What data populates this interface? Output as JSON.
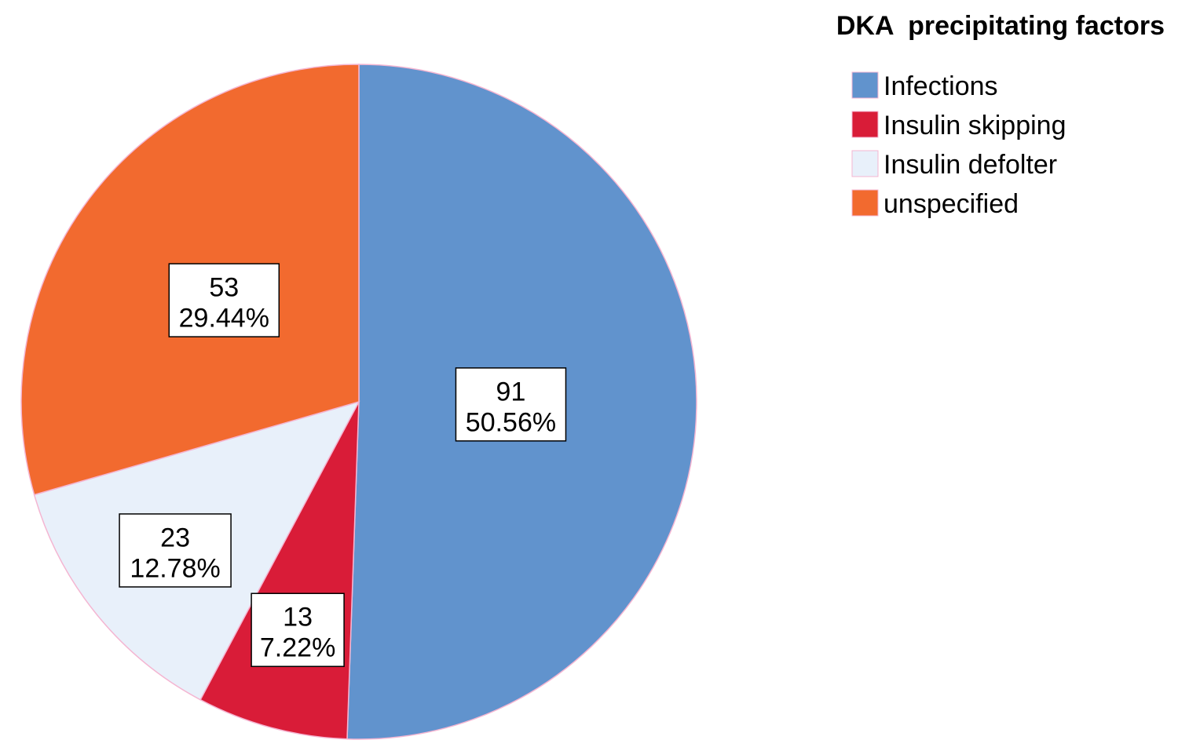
{
  "chart_data": {
    "type": "pie",
    "title": "",
    "legend": {
      "title": "DKA  precipitating factors",
      "placement": "top-right"
    },
    "slices": [
      {
        "label": "Infections",
        "value": 91,
        "percent_label": "50.56%",
        "color": "#6193CD"
      },
      {
        "label": "Insulin skipping",
        "value": 13,
        "percent_label": "7.22%",
        "color": "#D91C38"
      },
      {
        "label": "Insulin defolter",
        "value": 23,
        "percent_label": "12.78%",
        "color": "#E8F0FA"
      },
      {
        "label": "unspecified",
        "value": 53,
        "percent_label": "29.44%",
        "color": "#F26A2F"
      }
    ],
    "slice_edge_color": "#F4B6D2",
    "start_angle_deg": 0,
    "direction": "clockwise"
  }
}
